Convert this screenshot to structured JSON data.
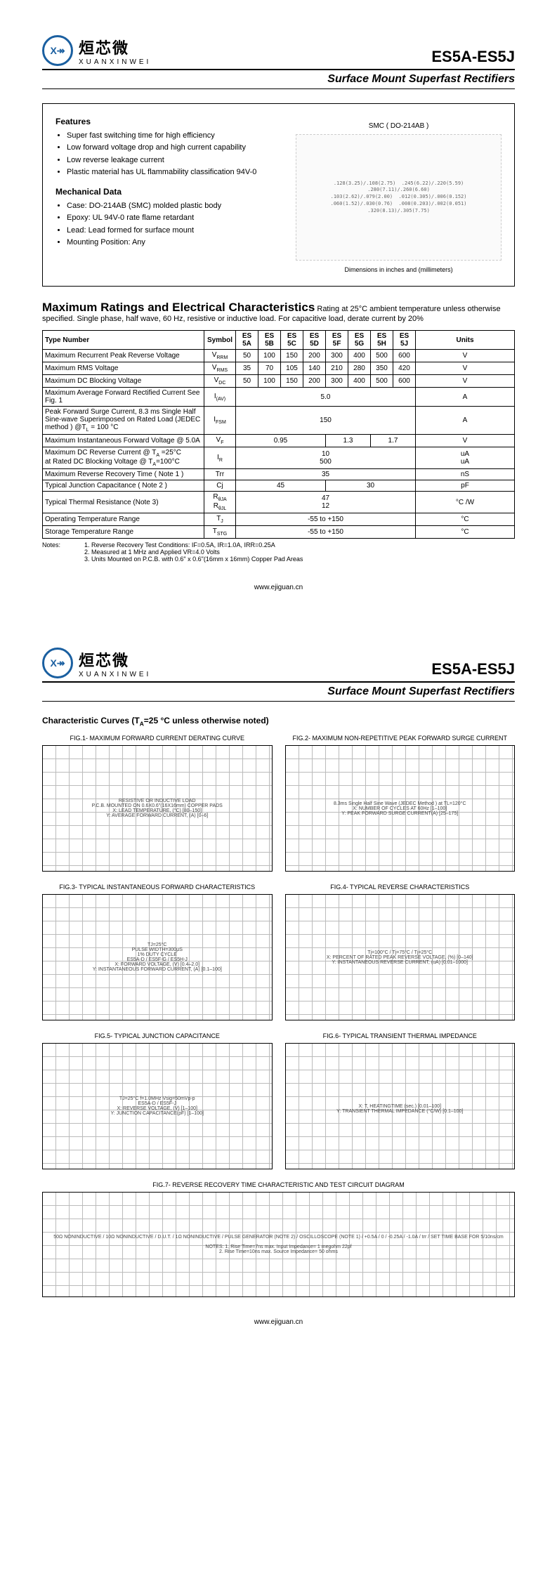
{
  "logo": {
    "cn": "烜芯微",
    "en": "XUANXINWEI",
    "glyph": "X↠"
  },
  "part_number": "ES5A-ES5J",
  "subtitle": "Surface Mount Superfast Rectifiers",
  "features": {
    "heading": "Features",
    "items": [
      "Super fast switching time for high efficiency",
      "Low forward voltage drop and high current capability",
      "Low reverse leakage current",
      "Plastic material has UL flammability classification 94V-0"
    ]
  },
  "mechdata": {
    "heading": "Mechanical Data",
    "items": [
      "Case: DO-214AB (SMC) molded plastic body",
      "Epoxy: UL 94V-0 rate flame retardant",
      "Lead: Lead formed for surface mount",
      "Mounting Position: Any"
    ]
  },
  "package": {
    "label": "SMC ( DO-214AB )",
    "dim_footer": "Dimensions in inches and (millimeters)",
    "dims_text": ".128(3.25)/.108(2.75)  .245(6.22)/.220(5.59)\n.280(7.11)/.260(6.60)\n.103(2.62)/.079(2.00)  .012(0.305)/.006(0.152)\n.060(1.52)/.030(0.76)  .008(0.203)/.002(0.051)\n.320(8.13)/.305(7.75)"
  },
  "ratings_block": {
    "heading": "Maximum Ratings and Electrical Characteristics",
    "heading_tail": " Rating at 25°C ambient temperature unless otherwise specified. Single phase, half wave, 60 Hz, resistive or inductive load. For capacitive load, derate current by 20%",
    "type_label": "Type Number",
    "symbol_label": "Symbol",
    "units_label": "Units",
    "variants": [
      "ES 5A",
      "ES 5B",
      "ES 5C",
      "ES 5D",
      "ES 5F",
      "ES 5G",
      "ES 5H",
      "ES 5J"
    ],
    "rows": [
      {
        "param": "Maximum Recurrent Peak Reverse Voltage",
        "sym": "V<sub>RRM</sub>",
        "vals": [
          "50",
          "100",
          "150",
          "200",
          "300",
          "400",
          "500",
          "600"
        ],
        "unit": "V"
      },
      {
        "param": "Maximum RMS Voltage",
        "sym": "V<sub>RMS</sub>",
        "vals": [
          "35",
          "70",
          "105",
          "140",
          "210",
          "280",
          "350",
          "420"
        ],
        "unit": "V"
      },
      {
        "param": "Maximum DC Blocking Voltage",
        "sym": "V<sub>DC</sub>",
        "vals": [
          "50",
          "100",
          "150",
          "200",
          "300",
          "400",
          "500",
          "600"
        ],
        "unit": "V"
      },
      {
        "param": "Maximum Average Forward Rectified Current See Fig. 1",
        "sym": "I<sub>(AV)</sub>",
        "span": "5.0",
        "unit": "A"
      },
      {
        "param": "Peak Forward Surge Current, 8.3 ms Single Half Sine-wave Superimposed on Rated Load (JEDEC method ) @T<sub>L</sub> = 100 °C",
        "sym": "I<sub>FSM</sub>",
        "span": "150",
        "unit": "A"
      },
      {
        "param": "Maximum Instantaneous Forward Voltage @ 5.0A",
        "sym": "V<sub>F</sub>",
        "grp": [
          {
            "c": 4,
            "v": "0.95"
          },
          {
            "c": 2,
            "v": "1.3"
          },
          {
            "c": 2,
            "v": "1.7"
          }
        ],
        "unit": "V"
      },
      {
        "param": "Maximum DC Reverse Current @ T<sub>A</sub> =25°C<br>at Rated DC Blocking Voltage @ T<sub>A</sub>=100°C",
        "sym": "I<sub>R</sub>",
        "stack": [
          "10",
          "500"
        ],
        "unit": "uA<br>uA"
      },
      {
        "param": "Maximum Reverse Recovery Time ( Note 1 )",
        "sym": "Trr",
        "span": "35",
        "unit": "nS"
      },
      {
        "param": "Typical Junction Capacitance ( Note 2 )",
        "sym": "Cj",
        "grp": [
          {
            "c": 4,
            "v": "45"
          },
          {
            "c": 4,
            "v": "30"
          }
        ],
        "unit": "pF"
      },
      {
        "param": "Typical Thermal Resistance (Note 3)",
        "sym": "R<sub>θJA</sub><br>R<sub>θJL</sub>",
        "stack": [
          "47",
          "12"
        ],
        "unit": "°C /W"
      },
      {
        "param": "Operating Temperature Range",
        "sym": "T<sub>J</sub>",
        "span": "-55 to +150",
        "unit": "°C"
      },
      {
        "param": "Storage Temperature Range",
        "sym": "T<sub>STG</sub>",
        "span": "-55 to +150",
        "unit": "°C"
      }
    ],
    "notes_label": "Notes:",
    "notes": [
      "1. Reverse Recovery Test Conditions: IF=0.5A, IR=1.0A, IRR=0.25A",
      "2. Measured at 1 MHz and Applied VR=4.0 Volts",
      "3. Units Mounted on P.C.B. with 0.6\" x 0.6\"(16mm x 16mm) Copper Pad Areas"
    ]
  },
  "footer_url": "www.ejiguan.cn",
  "page2": {
    "curves_heading": "Characteristic Curves (T<sub>A</sub>=25 °C unless otherwise noted)",
    "figs": [
      {
        "t": "FIG.1- MAXIMUM FORWARD CURRENT DERATING CURVE",
        "x": "LEAD TEMPERATURE, (°C)",
        "y": "AVERAGE FORWARD CURRENT, (A)",
        "note": "RESISTIVE OR INDUCTIVE LOAD\nP.C.B. MOUNTED ON 0.6X0.6\"(16X16mm) COPPER PADS",
        "xrange": "80–150",
        "yrange": "0–6"
      },
      {
        "t": "FIG.2- MAXIMUM NON-REPETITIVE PEAK FORWARD SURGE CURRENT",
        "x": "NUMBER OF CYCLES AT 60Hz",
        "y": "PEAK FORWARD SURGE CURRENT(A)",
        "note": "8.3ms Single Half Sine Wave (JEDEC Method ) at TL=120°C",
        "xrange": "1–100",
        "yrange": "25–175"
      },
      {
        "t": "FIG.3- TYPICAL INSTANTANEOUS FORWARD CHARACTERISTICS",
        "x": "FORWARD VOLTAGE, (V)",
        "y": "INSTANTANEOUS FORWARD CURRENT, (A)",
        "note": "TJ=25°C\nPULSE WIDTH=300μS\n1% DUTY CYCLE\nES5A-D / ES5F-G / ES5H-J",
        "xrange": "0.4–2.0",
        "yrange": "0.1–100"
      },
      {
        "t": "FIG.4- TYPICAL REVERSE CHARACTERISTICS",
        "x": "PERCENT OF RATED PEAK REVERSE VOLTAGE, (%)",
        "y": "INSTANTANEOUS REVERSE CURRENT, (uA)",
        "note": "Tj=100°C / Tj=75°C / Tj=25°C",
        "xrange": "0–140",
        "yrange": "0.01–1000"
      },
      {
        "t": "FIG.5- TYPICAL JUNCTION CAPACITANCE",
        "x": "REVERSE VOLTAGE, (V)",
        "y": "JUNCTION CAPACITANCE(pF)",
        "note": "TJ=25°C  f=1.0MHz  Vsig=50mVp-p\nES5A-D / ES5F-J",
        "xrange": "1–100",
        "yrange": "1–100"
      },
      {
        "t": "FIG.6- TYPICAL TRANSIENT THERMAL IMPEDANCE",
        "x": "T, HEATINGTIME (sec.)",
        "y": "TRANSIENT THERMAL IMPEDANCE (°C/W)",
        "note": "",
        "xrange": "0.01–100",
        "yrange": "0.1–100"
      }
    ],
    "fig7": {
      "t": "FIG.7- REVERSE RECOVERY TIME CHARACTERISTIC AND TEST CIRCUIT DIAGRAM",
      "labels": "50Ω NONINDUCTIVE / 10Ω NONINDUCTIVE / D.U.T. / 1Ω NONINDUCTIVE / PULSE GENERATOR (NOTE 2) / OSCILLOSCOPE (NOTE 1) / +0.5A / 0 / -0.25A / -1.0A / trr / SET TIME BASE FOR 5/10ns/cm",
      "notes": "NOTES: 1. Rise Time=7ns max. Input Impedance= 1 megohm 22pf\n2. Rise Time=10ns max. Source Impedance= 50 ohms"
    }
  }
}
